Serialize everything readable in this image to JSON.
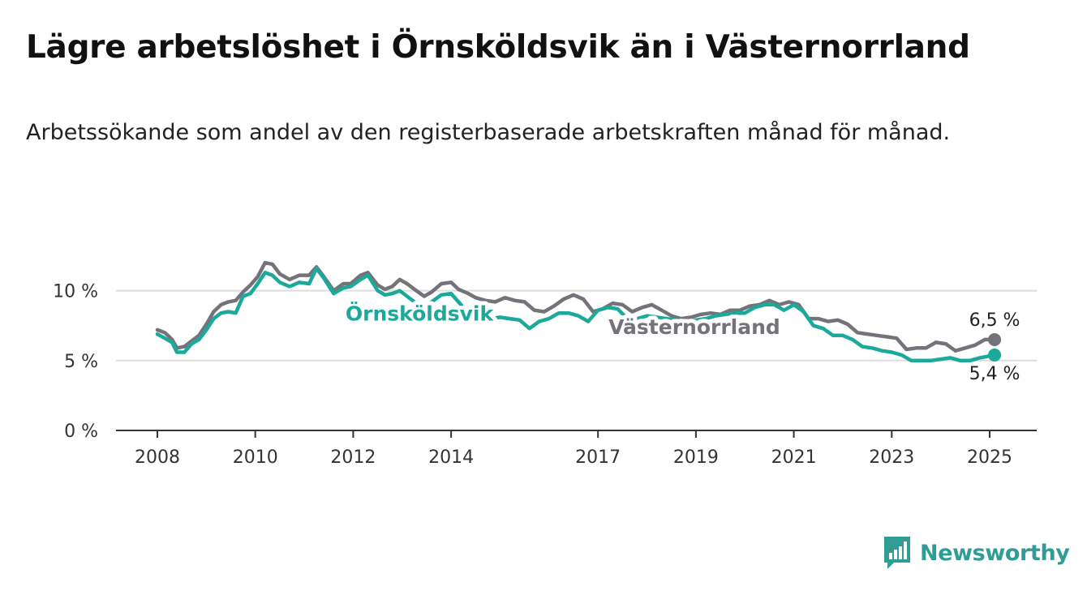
{
  "title": "Lägre arbetslöshet i Örnsköldsvik än i Västernorrland",
  "subtitle": "Arbetssökande som andel av den registerbaserade arbetskraften månad för månad.",
  "brand": {
    "name": "Newsworthy",
    "color": "#2f9c95",
    "icon": "bar-chart-speech-bubble-icon"
  },
  "chart_data": {
    "type": "line",
    "title": "",
    "xlabel": "",
    "ylabel": "",
    "ylim": [
      0,
      13.4
    ],
    "xlim": [
      2007.75,
      2026.7
    ],
    "grid": true,
    "y_ticks": [
      {
        "value": 0,
        "label": "0 %"
      },
      {
        "value": 5,
        "label": "5 %"
      },
      {
        "value": 10,
        "label": "10 %"
      }
    ],
    "x_ticks": [
      {
        "value": 2008,
        "label": "2008"
      },
      {
        "value": 2010,
        "label": "2010"
      },
      {
        "value": 2012,
        "label": "2012"
      },
      {
        "value": 2014,
        "label": "2014"
      },
      {
        "value": 2017,
        "label": "2017"
      },
      {
        "value": 2019,
        "label": "2019"
      },
      {
        "value": 2021,
        "label": "2021"
      },
      {
        "value": 2023,
        "label": "2023"
      },
      {
        "value": 2025,
        "label": "2025"
      }
    ],
    "series": [
      {
        "name": "Västernorrland",
        "color": "#75737a",
        "end_label": "6,5 %",
        "points": [
          [
            2008.0,
            7.2
          ],
          [
            2008.15,
            7.0
          ],
          [
            2008.3,
            6.5
          ],
          [
            2008.4,
            5.9
          ],
          [
            2008.55,
            6.0
          ],
          [
            2008.7,
            6.4
          ],
          [
            2008.85,
            6.8
          ],
          [
            2009.0,
            7.6
          ],
          [
            2009.15,
            8.5
          ],
          [
            2009.3,
            9.0
          ],
          [
            2009.45,
            9.2
          ],
          [
            2009.6,
            9.3
          ],
          [
            2009.75,
            9.9
          ],
          [
            2009.9,
            10.4
          ],
          [
            2010.05,
            11.0
          ],
          [
            2010.2,
            12.0
          ],
          [
            2010.35,
            11.9
          ],
          [
            2010.5,
            11.2
          ],
          [
            2010.7,
            10.8
          ],
          [
            2010.9,
            11.1
          ],
          [
            2011.1,
            11.1
          ],
          [
            2011.25,
            11.7
          ],
          [
            2011.4,
            11.0
          ],
          [
            2011.6,
            10.0
          ],
          [
            2011.8,
            10.5
          ],
          [
            2011.95,
            10.5
          ],
          [
            2012.15,
            11.1
          ],
          [
            2012.3,
            11.3
          ],
          [
            2012.5,
            10.4
          ],
          [
            2012.65,
            10.1
          ],
          [
            2012.8,
            10.3
          ],
          [
            2012.95,
            10.8
          ],
          [
            2013.1,
            10.5
          ],
          [
            2013.25,
            10.1
          ],
          [
            2013.45,
            9.6
          ],
          [
            2013.6,
            9.9
          ],
          [
            2013.8,
            10.5
          ],
          [
            2014.0,
            10.6
          ],
          [
            2014.15,
            10.1
          ],
          [
            2014.35,
            9.8
          ],
          [
            2014.5,
            9.5
          ],
          [
            2014.7,
            9.3
          ],
          [
            2014.9,
            9.2
          ],
          [
            2015.1,
            9.5
          ],
          [
            2015.3,
            9.3
          ],
          [
            2015.5,
            9.2
          ],
          [
            2015.7,
            8.6
          ],
          [
            2015.9,
            8.5
          ],
          [
            2016.1,
            8.9
          ],
          [
            2016.3,
            9.4
          ],
          [
            2016.5,
            9.7
          ],
          [
            2016.7,
            9.4
          ],
          [
            2016.9,
            8.5
          ],
          [
            2017.1,
            8.7
          ],
          [
            2017.3,
            9.1
          ],
          [
            2017.5,
            9.0
          ],
          [
            2017.7,
            8.5
          ],
          [
            2017.9,
            8.8
          ],
          [
            2018.1,
            9.0
          ],
          [
            2018.3,
            8.6
          ],
          [
            2018.5,
            8.2
          ],
          [
            2018.7,
            8.0
          ],
          [
            2018.9,
            8.1
          ],
          [
            2019.1,
            8.3
          ],
          [
            2019.3,
            8.4
          ],
          [
            2019.5,
            8.3
          ],
          [
            2019.7,
            8.6
          ],
          [
            2019.9,
            8.6
          ],
          [
            2020.1,
            8.9
          ],
          [
            2020.3,
            9.0
          ],
          [
            2020.5,
            9.3
          ],
          [
            2020.7,
            9.0
          ],
          [
            2020.9,
            9.2
          ],
          [
            2021.1,
            9.0
          ],
          [
            2021.3,
            8.0
          ],
          [
            2021.5,
            8.0
          ],
          [
            2021.7,
            7.8
          ],
          [
            2021.9,
            7.9
          ],
          [
            2022.1,
            7.6
          ],
          [
            2022.3,
            7.0
          ],
          [
            2022.5,
            6.9
          ],
          [
            2022.7,
            6.8
          ],
          [
            2022.9,
            6.7
          ],
          [
            2023.1,
            6.6
          ],
          [
            2023.3,
            5.8
          ],
          [
            2023.5,
            5.9
          ],
          [
            2023.7,
            5.9
          ],
          [
            2023.9,
            6.3
          ],
          [
            2024.1,
            6.2
          ],
          [
            2024.3,
            5.7
          ],
          [
            2024.5,
            5.9
          ],
          [
            2024.7,
            6.1
          ],
          [
            2024.9,
            6.5
          ],
          [
            2025.1,
            6.5
          ]
        ]
      },
      {
        "name": "Örnsköldsvik",
        "color": "#1aa99b",
        "end_label": "5,4 %",
        "points": [
          [
            2008.0,
            6.9
          ],
          [
            2008.15,
            6.6
          ],
          [
            2008.3,
            6.3
          ],
          [
            2008.4,
            5.6
          ],
          [
            2008.55,
            5.6
          ],
          [
            2008.7,
            6.2
          ],
          [
            2008.85,
            6.5
          ],
          [
            2009.0,
            7.2
          ],
          [
            2009.15,
            8.0
          ],
          [
            2009.3,
            8.4
          ],
          [
            2009.45,
            8.5
          ],
          [
            2009.6,
            8.4
          ],
          [
            2009.75,
            9.6
          ],
          [
            2009.9,
            9.8
          ],
          [
            2010.05,
            10.5
          ],
          [
            2010.2,
            11.3
          ],
          [
            2010.35,
            11.1
          ],
          [
            2010.5,
            10.6
          ],
          [
            2010.7,
            10.3
          ],
          [
            2010.9,
            10.6
          ],
          [
            2011.1,
            10.5
          ],
          [
            2011.25,
            11.6
          ],
          [
            2011.4,
            10.9
          ],
          [
            2011.6,
            9.8
          ],
          [
            2011.8,
            10.2
          ],
          [
            2011.95,
            10.3
          ],
          [
            2012.15,
            10.8
          ],
          [
            2012.3,
            11.1
          ],
          [
            2012.5,
            10.0
          ],
          [
            2012.65,
            9.7
          ],
          [
            2012.8,
            9.8
          ],
          [
            2012.95,
            10.0
          ],
          [
            2013.1,
            9.6
          ],
          [
            2013.25,
            9.2
          ],
          [
            2013.45,
            8.8
          ],
          [
            2013.6,
            9.2
          ],
          [
            2013.8,
            9.7
          ],
          [
            2014.0,
            9.8
          ],
          [
            2014.2,
            9.0
          ],
          [
            2014.4,
            7.9
          ],
          [
            2014.6,
            7.8
          ],
          [
            2014.8,
            8.0
          ],
          [
            2015.0,
            8.1
          ],
          [
            2015.2,
            8.0
          ],
          [
            2015.4,
            7.9
          ],
          [
            2015.6,
            7.3
          ],
          [
            2015.8,
            7.8
          ],
          [
            2016.0,
            8.0
          ],
          [
            2016.2,
            8.4
          ],
          [
            2016.4,
            8.4
          ],
          [
            2016.6,
            8.2
          ],
          [
            2016.8,
            7.8
          ],
          [
            2017.0,
            8.6
          ],
          [
            2017.2,
            8.8
          ],
          [
            2017.4,
            8.7
          ],
          [
            2017.6,
            8.0
          ],
          [
            2017.8,
            8.0
          ],
          [
            2018.0,
            8.2
          ],
          [
            2018.2,
            8.1
          ],
          [
            2018.4,
            8.0
          ],
          [
            2018.6,
            7.9
          ],
          [
            2018.8,
            7.8
          ],
          [
            2019.0,
            7.9
          ],
          [
            2019.2,
            8.0
          ],
          [
            2019.4,
            8.2
          ],
          [
            2019.6,
            8.3
          ],
          [
            2019.8,
            8.4
          ],
          [
            2020.0,
            8.4
          ],
          [
            2020.2,
            8.8
          ],
          [
            2020.4,
            9.0
          ],
          [
            2020.6,
            9.0
          ],
          [
            2020.8,
            8.6
          ],
          [
            2021.0,
            9.0
          ],
          [
            2021.2,
            8.5
          ],
          [
            2021.4,
            7.5
          ],
          [
            2021.6,
            7.3
          ],
          [
            2021.8,
            6.8
          ],
          [
            2022.0,
            6.8
          ],
          [
            2022.2,
            6.5
          ],
          [
            2022.4,
            6.0
          ],
          [
            2022.6,
            5.9
          ],
          [
            2022.8,
            5.7
          ],
          [
            2023.0,
            5.6
          ],
          [
            2023.2,
            5.4
          ],
          [
            2023.4,
            5.0
          ],
          [
            2023.6,
            5.0
          ],
          [
            2023.8,
            5.0
          ],
          [
            2024.0,
            5.1
          ],
          [
            2024.2,
            5.2
          ],
          [
            2024.4,
            5.0
          ],
          [
            2024.6,
            5.0
          ],
          [
            2024.8,
            5.2
          ],
          [
            2025.1,
            5.4
          ]
        ]
      }
    ],
    "annotations": [
      {
        "series": "Örnsköldsvik",
        "text": "Örnsköldsvik",
        "anchor_year": 2013.35,
        "anchor_value": 9.3
      },
      {
        "series": "Västernorrland",
        "text": "Västernorrland",
        "anchor_year": 2019.55,
        "anchor_value": 7.9
      }
    ]
  }
}
